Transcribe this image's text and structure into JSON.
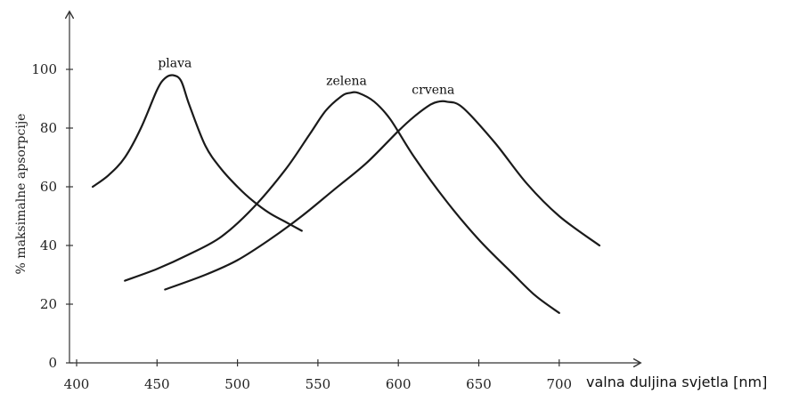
{
  "chart_data": {
    "type": "line",
    "title": "",
    "xlabel": "valna duljina svjetla [nm]",
    "ylabel": "% maksimalne apsorpcije",
    "xlim": [
      400,
      730
    ],
    "ylim": [
      0,
      110
    ],
    "xticks": [
      "400",
      "450",
      "500",
      "550",
      "600",
      "650",
      "700"
    ],
    "yticks": [
      "0",
      "20",
      "40",
      "60",
      "80",
      "100"
    ],
    "grid": false,
    "series": [
      {
        "name": "plava",
        "x": [
          410,
          420,
          430,
          440,
          450,
          455,
          460,
          465,
          470,
          480,
          490,
          500,
          510,
          520,
          530,
          540
        ],
        "y": [
          60,
          64,
          70,
          80,
          93,
          97,
          98,
          96,
          88,
          74,
          66,
          60,
          55,
          51,
          48,
          45
        ]
      },
      {
        "name": "zelena",
        "x": [
          430,
          450,
          470,
          490,
          510,
          530,
          545,
          555,
          565,
          570,
          575,
          585,
          595,
          610,
          630,
          650,
          670,
          685,
          700
        ],
        "y": [
          28,
          32,
          37,
          43,
          53,
          66,
          78,
          86,
          91,
          92,
          92,
          89,
          83,
          70,
          55,
          42,
          31,
          23,
          17
        ]
      },
      {
        "name": "crvena",
        "x": [
          455,
          480,
          500,
          520,
          540,
          560,
          580,
          600,
          610,
          620,
          625,
          630,
          640,
          660,
          680,
          700,
          725
        ],
        "y": [
          25,
          30,
          35,
          42,
          50,
          59,
          68,
          79,
          84,
          88,
          89,
          89,
          87,
          75,
          61,
          50,
          40
        ]
      }
    ]
  }
}
